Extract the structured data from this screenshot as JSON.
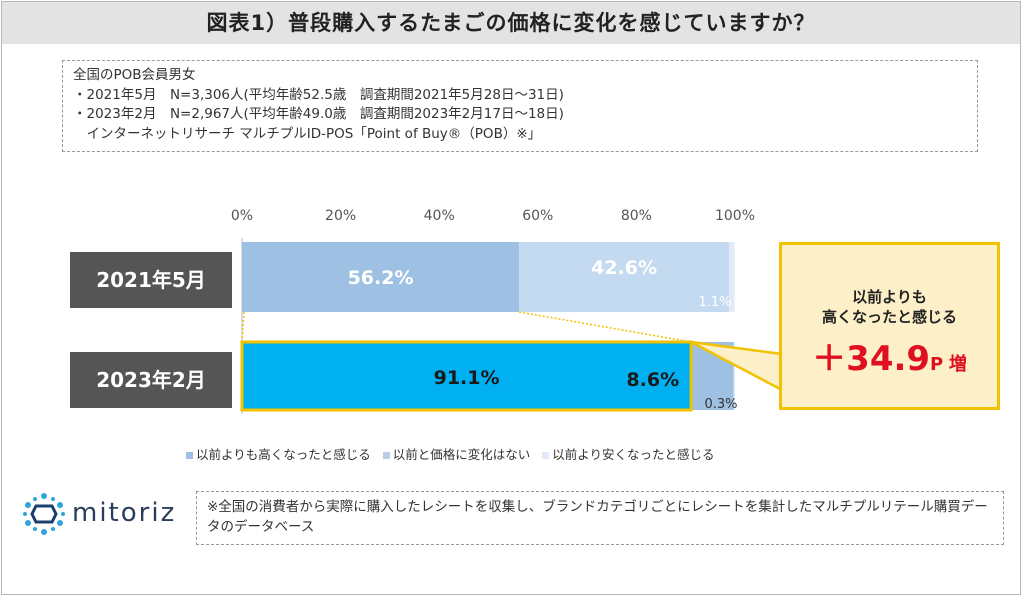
{
  "title": "図表1）普段購入するたまごの価格に変化を感じていますか？",
  "survey": {
    "lines": [
      "全国のPOB会員男女",
      "・2021年5月　N=3,306人(平均年齢52.5歳　調査期間2021年5月28日～31日)",
      "・2023年2月　N=2,967人(平均年齢49.0歳　調査期間2023年2月17日～18日)",
      "　インターネットリサーチ マルチプルID-POS「Point of Buy®（POB）※」"
    ]
  },
  "chart_data": {
    "type": "bar",
    "orientation": "horizontal-stacked",
    "categories": [
      "2021年5月",
      "2023年2月"
    ],
    "series": [
      {
        "name": "以前よりも高くなったと感じる",
        "values": [
          56.2,
          91.1
        ],
        "labels": [
          "56.2%",
          "91.1%"
        ]
      },
      {
        "name": "以前と価格に変化はない",
        "values": [
          42.6,
          8.6
        ],
        "labels": [
          "42.6%",
          "8.6%"
        ]
      },
      {
        "name": "以前より安くなったと感じる",
        "values": [
          1.1,
          0.3
        ],
        "labels": [
          "1.1%",
          "0.3%"
        ]
      }
    ],
    "xticks": [
      "0%",
      "20%",
      "40%",
      "60%",
      "80%",
      "100%"
    ],
    "xlim": [
      0,
      100
    ],
    "legend_position": "bottom",
    "colors": {
      "2021": [
        "#9ec0e3",
        "#c4daf0",
        "#e1ebf7"
      ],
      "2023": [
        "#00b0f0",
        "#9ec0e3",
        "#e1ebf7"
      ],
      "highlight_border": "#f2c200",
      "legend": [
        "#9ec0e3",
        "#b5cfea",
        "#e1ebf7"
      ]
    }
  },
  "callout": {
    "line1": "以前よりも",
    "line2": "高くなったと感じる",
    "number": "＋34.9",
    "unit": "P",
    "suffix": "増"
  },
  "logo": {
    "text": "mitoriz"
  },
  "note": "※全国の消費者から実際に購入したレシートを収集し、ブランドカテゴリごとにレシートを集計したマルチプルリテール購買データのデータベース"
}
